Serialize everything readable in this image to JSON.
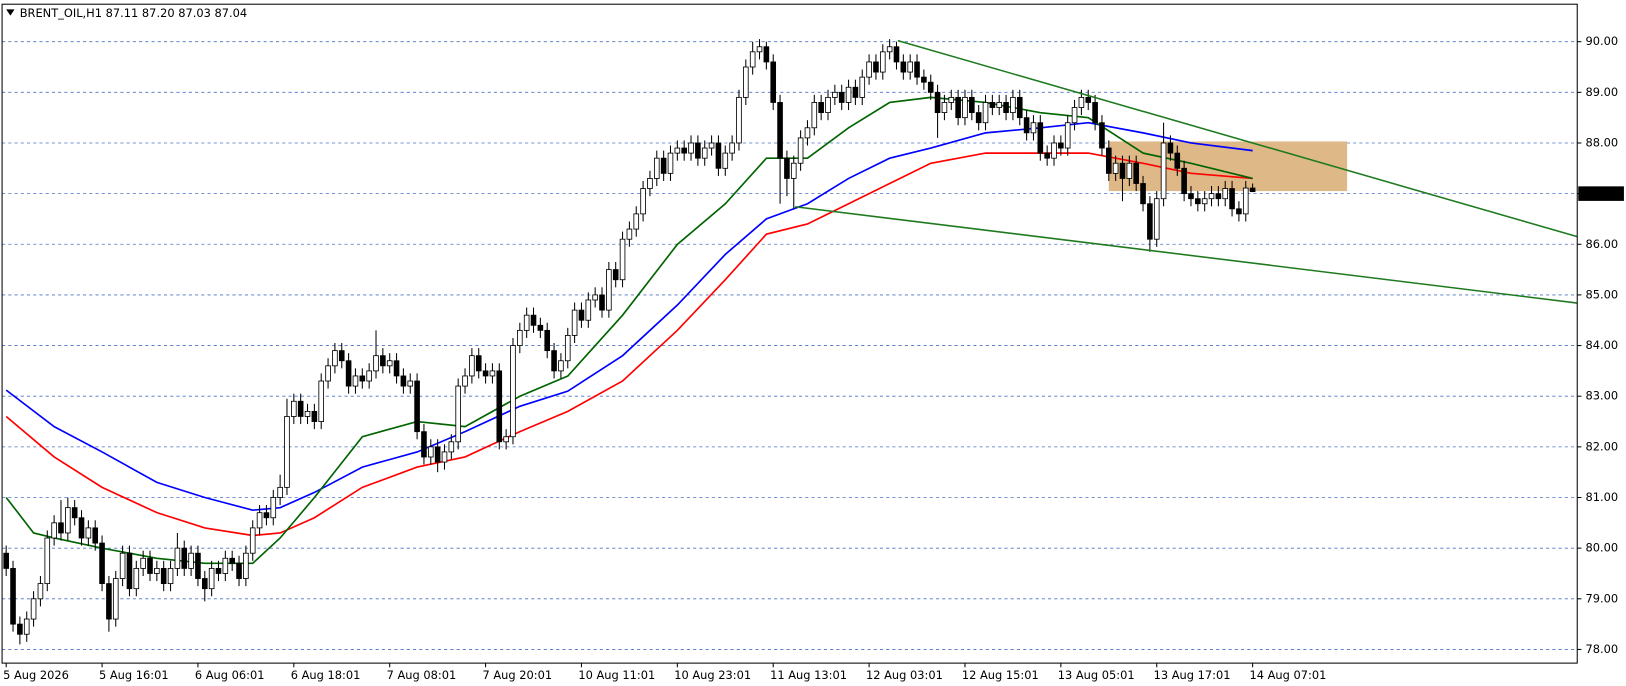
{
  "chart_data": {
    "type": "candlestick",
    "title": "BRENT_OIL,H1  87.11 87.20 87.03 87.04",
    "bull_color": "#ffffff",
    "bear_color": "#000000",
    "grid": true,
    "grid_color": "#4a72c4",
    "xlim": [
      -0.6,
      229.4
    ],
    "ylim": [
      77.73,
      90.74
    ],
    "yticks": [
      {
        "value": 78,
        "label": "78.00"
      },
      {
        "value": 79,
        "label": "79.00"
      },
      {
        "value": 80,
        "label": "80.00"
      },
      {
        "value": 81,
        "label": "81.00"
      },
      {
        "value": 82,
        "label": "82.00"
      },
      {
        "value": 83,
        "label": "83.00"
      },
      {
        "value": 84,
        "label": "84.00"
      },
      {
        "value": 85,
        "label": "85.00"
      },
      {
        "value": 86,
        "label": "86.00"
      },
      {
        "value": 87,
        "label": "87.00"
      },
      {
        "value": 88,
        "label": "88.00"
      },
      {
        "value": 89,
        "label": "89.00"
      },
      {
        "value": 90,
        "label": "90.00"
      }
    ],
    "highlighted_ytick": 87,
    "xticks": [
      {
        "value": 0,
        "label": "5 Aug 2026"
      },
      {
        "value": 14,
        "label": "5 Aug 16:01"
      },
      {
        "value": 28,
        "label": "6 Aug 06:01"
      },
      {
        "value": 42,
        "label": "6 Aug 18:01"
      },
      {
        "value": 56,
        "label": "7 Aug 08:01"
      },
      {
        "value": 70,
        "label": "7 Aug 20:01"
      },
      {
        "value": 84,
        "label": "10 Aug 11:01"
      },
      {
        "value": 98,
        "label": "10 Aug 23:01"
      },
      {
        "value": 112,
        "label": "11 Aug 13:01"
      },
      {
        "value": 126,
        "label": "12 Aug 03:01"
      },
      {
        "value": 140,
        "label": "12 Aug 15:01"
      },
      {
        "value": 154,
        "label": "13 Aug 05:01"
      },
      {
        "value": 168,
        "label": "13 Aug 17:01"
      },
      {
        "value": 182,
        "label": "14 Aug 07:01"
      }
    ],
    "candles": [
      [
        79.9,
        80.05,
        79.45,
        79.6
      ],
      [
        79.6,
        79.75,
        78.35,
        78.5
      ],
      [
        78.5,
        78.65,
        78.1,
        78.3
      ],
      [
        78.3,
        78.75,
        78.15,
        78.6
      ],
      [
        78.6,
        79.15,
        78.45,
        79.0
      ],
      [
        79.0,
        79.45,
        78.85,
        79.3
      ],
      [
        79.3,
        80.35,
        79.15,
        80.2
      ],
      [
        80.2,
        80.65,
        80.05,
        80.5
      ],
      [
        80.5,
        80.95,
        80.15,
        80.3
      ],
      [
        80.3,
        81.0,
        80.15,
        80.8
      ],
      [
        80.8,
        80.95,
        80.45,
        80.6
      ],
      [
        80.6,
        80.75,
        80.05,
        80.2
      ],
      [
        80.2,
        80.55,
        80.05,
        80.4
      ],
      [
        80.4,
        80.55,
        79.95,
        80.1
      ],
      [
        80.1,
        80.25,
        79.15,
        79.3
      ],
      [
        79.3,
        79.45,
        78.35,
        78.6
      ],
      [
        78.6,
        79.55,
        78.45,
        79.4
      ],
      [
        79.4,
        80.05,
        79.25,
        79.9
      ],
      [
        79.9,
        80.05,
        79.05,
        79.2
      ],
      [
        79.2,
        79.75,
        79.05,
        79.6
      ],
      [
        79.6,
        79.95,
        79.45,
        79.8
      ],
      [
        79.8,
        79.95,
        79.35,
        79.5
      ],
      [
        79.5,
        79.75,
        79.35,
        79.6
      ],
      [
        79.6,
        79.75,
        79.15,
        79.3
      ],
      [
        79.3,
        79.75,
        79.15,
        79.6
      ],
      [
        79.6,
        80.3,
        79.45,
        80.0
      ],
      [
        80.0,
        80.15,
        79.45,
        79.6
      ],
      [
        79.6,
        80.05,
        79.45,
        79.9
      ],
      [
        79.9,
        80.05,
        79.25,
        79.4
      ],
      [
        79.4,
        79.55,
        78.95,
        79.2
      ],
      [
        79.2,
        79.75,
        79.05,
        79.6
      ],
      [
        79.6,
        79.75,
        79.35,
        79.5
      ],
      [
        79.5,
        79.95,
        79.35,
        79.8
      ],
      [
        79.8,
        79.95,
        79.55,
        79.7
      ],
      [
        79.7,
        79.85,
        79.25,
        79.4
      ],
      [
        79.4,
        80.05,
        79.25,
        79.9
      ],
      [
        79.9,
        80.55,
        79.75,
        80.4
      ],
      [
        80.4,
        80.85,
        80.25,
        80.7
      ],
      [
        80.7,
        80.85,
        80.45,
        80.6
      ],
      [
        80.6,
        81.15,
        80.45,
        81.0
      ],
      [
        81.0,
        81.45,
        80.85,
        81.2
      ],
      [
        81.2,
        82.95,
        81.05,
        82.6
      ],
      [
        82.6,
        83.05,
        82.45,
        82.9
      ],
      [
        82.9,
        83.05,
        82.45,
        82.6
      ],
      [
        82.6,
        82.85,
        82.45,
        82.7
      ],
      [
        82.7,
        82.85,
        82.35,
        82.5
      ],
      [
        82.5,
        83.45,
        82.35,
        83.3
      ],
      [
        83.3,
        83.75,
        83.15,
        83.6
      ],
      [
        83.6,
        84.05,
        83.45,
        83.9
      ],
      [
        83.9,
        84.05,
        83.55,
        83.7
      ],
      [
        83.7,
        83.85,
        83.05,
        83.2
      ],
      [
        83.2,
        83.55,
        83.05,
        83.4
      ],
      [
        83.4,
        83.55,
        83.15,
        83.3
      ],
      [
        83.3,
        83.65,
        83.15,
        83.5
      ],
      [
        83.5,
        84.3,
        83.35,
        83.8
      ],
      [
        83.8,
        83.95,
        83.45,
        83.6
      ],
      [
        83.6,
        83.85,
        83.45,
        83.7
      ],
      [
        83.7,
        83.85,
        83.25,
        83.4
      ],
      [
        83.4,
        83.55,
        83.05,
        83.2
      ],
      [
        83.2,
        83.45,
        83.05,
        83.3
      ],
      [
        83.3,
        83.45,
        82.15,
        82.3
      ],
      [
        82.3,
        82.45,
        81.65,
        81.8
      ],
      [
        81.8,
        82.15,
        81.65,
        82.0
      ],
      [
        82.0,
        82.15,
        81.5,
        81.7
      ],
      [
        81.7,
        82.05,
        81.55,
        81.9
      ],
      [
        81.9,
        82.25,
        81.75,
        82.1
      ],
      [
        82.1,
        83.35,
        81.95,
        83.2
      ],
      [
        83.2,
        83.55,
        83.05,
        83.4
      ],
      [
        83.4,
        83.95,
        83.25,
        83.8
      ],
      [
        83.8,
        83.95,
        83.35,
        83.5
      ],
      [
        83.5,
        83.65,
        83.25,
        83.4
      ],
      [
        83.4,
        83.65,
        83.25,
        83.5
      ],
      [
        83.5,
        83.65,
        81.95,
        82.1
      ],
      [
        82.1,
        82.35,
        81.95,
        82.2
      ],
      [
        82.2,
        84.15,
        82.05,
        84.0
      ],
      [
        84.0,
        84.45,
        83.85,
        84.3
      ],
      [
        84.3,
        84.75,
        84.15,
        84.6
      ],
      [
        84.6,
        84.75,
        84.25,
        84.4
      ],
      [
        84.4,
        84.55,
        84.15,
        84.3
      ],
      [
        84.3,
        84.45,
        83.75,
        83.9
      ],
      [
        83.9,
        84.05,
        83.35,
        83.5
      ],
      [
        83.5,
        83.85,
        83.35,
        83.7
      ],
      [
        83.7,
        84.35,
        83.55,
        84.2
      ],
      [
        84.2,
        84.85,
        84.05,
        84.7
      ],
      [
        84.7,
        84.85,
        84.35,
        84.5
      ],
      [
        84.5,
        85.05,
        84.35,
        84.9
      ],
      [
        84.9,
        85.15,
        84.75,
        85.0
      ],
      [
        85.0,
        85.15,
        84.55,
        84.7
      ],
      [
        84.7,
        85.65,
        84.55,
        85.5
      ],
      [
        85.5,
        85.65,
        85.15,
        85.3
      ],
      [
        85.3,
        86.25,
        85.15,
        86.1
      ],
      [
        86.1,
        86.45,
        85.95,
        86.3
      ],
      [
        86.3,
        86.75,
        86.15,
        86.6
      ],
      [
        86.6,
        87.25,
        86.45,
        87.1
      ],
      [
        87.1,
        87.45,
        86.95,
        87.3
      ],
      [
        87.3,
        87.85,
        87.15,
        87.7
      ],
      [
        87.7,
        87.85,
        87.25,
        87.4
      ],
      [
        87.4,
        87.95,
        87.25,
        87.8
      ],
      [
        87.8,
        88.05,
        87.65,
        87.9
      ],
      [
        87.9,
        88.05,
        87.65,
        87.8
      ],
      [
        87.8,
        88.15,
        87.65,
        88.0
      ],
      [
        88.0,
        88.15,
        87.55,
        87.7
      ],
      [
        87.7,
        88.05,
        87.55,
        87.9
      ],
      [
        87.9,
        88.15,
        87.75,
        88.0
      ],
      [
        88.0,
        88.15,
        87.35,
        87.5
      ],
      [
        87.5,
        87.95,
        87.35,
        87.8
      ],
      [
        87.8,
        88.15,
        87.65,
        88.0
      ],
      [
        88.0,
        89.05,
        87.85,
        88.9
      ],
      [
        88.9,
        89.65,
        88.75,
        89.5
      ],
      [
        89.5,
        90.0,
        89.35,
        89.8
      ],
      [
        89.8,
        90.05,
        89.65,
        89.9
      ],
      [
        89.9,
        90.0,
        89.45,
        89.6
      ],
      [
        89.6,
        89.75,
        88.65,
        88.8
      ],
      [
        88.8,
        88.95,
        86.8,
        87.7
      ],
      [
        87.7,
        87.85,
        86.95,
        87.3
      ],
      [
        87.3,
        87.75,
        86.7,
        87.6
      ],
      [
        87.6,
        88.25,
        87.45,
        88.1
      ],
      [
        88.1,
        88.45,
        87.95,
        88.3
      ],
      [
        88.3,
        88.95,
        88.15,
        88.8
      ],
      [
        88.8,
        88.95,
        88.45,
        88.6
      ],
      [
        88.6,
        89.05,
        88.45,
        88.9
      ],
      [
        88.9,
        89.15,
        88.75,
        89.0
      ],
      [
        89.0,
        89.15,
        88.65,
        88.8
      ],
      [
        88.8,
        89.25,
        88.65,
        89.1
      ],
      [
        89.1,
        89.25,
        88.75,
        88.9
      ],
      [
        88.9,
        89.45,
        88.75,
        89.3
      ],
      [
        89.3,
        89.75,
        89.15,
        89.6
      ],
      [
        89.6,
        89.75,
        89.25,
        89.4
      ],
      [
        89.4,
        89.95,
        89.25,
        89.8
      ],
      [
        89.8,
        90.05,
        89.65,
        89.9
      ],
      [
        89.9,
        90.0,
        89.45,
        89.6
      ],
      [
        89.6,
        89.75,
        89.25,
        89.4
      ],
      [
        89.4,
        89.75,
        89.25,
        89.6
      ],
      [
        89.6,
        89.75,
        89.15,
        89.3
      ],
      [
        89.3,
        89.45,
        89.05,
        89.2
      ],
      [
        89.2,
        89.35,
        88.85,
        89.0
      ],
      [
        89.0,
        89.15,
        88.1,
        88.6
      ],
      [
        88.6,
        88.95,
        88.45,
        88.8
      ],
      [
        88.8,
        89.05,
        88.65,
        88.9
      ],
      [
        88.9,
        89.05,
        88.35,
        88.5
      ],
      [
        88.5,
        89.05,
        88.35,
        88.9
      ],
      [
        88.9,
        89.05,
        88.45,
        88.6
      ],
      [
        88.6,
        88.75,
        88.25,
        88.4
      ],
      [
        88.4,
        88.95,
        88.25,
        88.8
      ],
      [
        88.8,
        88.95,
        88.55,
        88.7
      ],
      [
        88.7,
        88.95,
        88.55,
        88.8
      ],
      [
        88.8,
        88.95,
        88.45,
        88.6
      ],
      [
        88.6,
        89.05,
        88.45,
        88.9
      ],
      [
        88.9,
        89.05,
        88.35,
        88.5
      ],
      [
        88.5,
        88.65,
        88.05,
        88.2
      ],
      [
        88.2,
        88.55,
        88.05,
        88.4
      ],
      [
        88.4,
        88.55,
        87.65,
        87.8
      ],
      [
        87.8,
        87.95,
        87.55,
        87.7
      ],
      [
        87.7,
        88.15,
        87.55,
        88.0
      ],
      [
        88.0,
        88.15,
        87.75,
        87.9
      ],
      [
        87.9,
        88.55,
        87.75,
        88.4
      ],
      [
        88.4,
        88.85,
        88.25,
        88.7
      ],
      [
        88.7,
        89.05,
        88.55,
        88.9
      ],
      [
        88.9,
        89.05,
        88.65,
        88.8
      ],
      [
        88.8,
        88.95,
        88.25,
        88.4
      ],
      [
        88.4,
        88.55,
        87.75,
        87.9
      ],
      [
        87.9,
        88.05,
        87.25,
        87.4
      ],
      [
        87.4,
        87.75,
        87.25,
        87.6
      ],
      [
        87.6,
        87.75,
        86.85,
        87.3
      ],
      [
        87.3,
        87.75,
        87.15,
        87.6
      ],
      [
        87.6,
        87.75,
        87.05,
        87.2
      ],
      [
        87.2,
        87.35,
        86.65,
        86.8
      ],
      [
        86.8,
        86.95,
        85.85,
        86.1
      ],
      [
        86.1,
        87.05,
        85.95,
        86.9
      ],
      [
        86.9,
        88.4,
        86.75,
        88.0
      ],
      [
        88.0,
        88.15,
        87.65,
        87.8
      ],
      [
        87.8,
        87.95,
        87.35,
        87.5
      ],
      [
        87.5,
        87.65,
        86.85,
        87.0
      ],
      [
        87.0,
        87.15,
        86.75,
        86.9
      ],
      [
        86.9,
        87.05,
        86.65,
        86.8
      ],
      [
        86.8,
        87.05,
        86.65,
        86.9
      ],
      [
        86.9,
        87.15,
        86.75,
        87.0
      ],
      [
        87.0,
        87.15,
        86.75,
        86.9
      ],
      [
        86.9,
        87.25,
        86.75,
        87.1
      ],
      [
        87.1,
        87.25,
        86.55,
        86.7
      ],
      [
        86.7,
        86.85,
        86.45,
        86.6
      ],
      [
        86.6,
        87.25,
        86.45,
        87.11
      ],
      [
        87.11,
        87.2,
        87.03,
        87.04
      ]
    ],
    "moving_averages": [
      {
        "color": "#0000ff",
        "x": [
          0,
          7,
          14,
          22,
          29,
          36,
          40,
          45,
          52,
          60,
          67,
          75,
          82,
          90,
          98,
          105,
          111,
          117,
          123,
          129,
          135,
          143,
          151,
          158,
          166,
          173,
          182
        ],
        "values": [
          83.12,
          82.4,
          81.9,
          81.3,
          81.0,
          80.75,
          80.8,
          81.1,
          81.6,
          81.9,
          82.3,
          82.8,
          83.1,
          83.8,
          84.8,
          85.8,
          86.5,
          86.8,
          87.3,
          87.7,
          87.9,
          88.2,
          88.3,
          88.4,
          88.2,
          88.0,
          87.85
        ]
      },
      {
        "color": "#ff0000",
        "x": [
          0,
          7,
          14,
          22,
          29,
          36,
          40,
          45,
          52,
          60,
          67,
          75,
          82,
          90,
          98,
          105,
          111,
          117,
          123,
          129,
          135,
          143,
          151,
          158,
          166,
          173,
          182
        ],
        "values": [
          82.6,
          81.8,
          81.2,
          80.7,
          80.4,
          80.25,
          80.3,
          80.6,
          81.2,
          81.6,
          81.8,
          82.3,
          82.7,
          83.3,
          84.3,
          85.3,
          86.2,
          86.4,
          86.8,
          87.2,
          87.6,
          87.8,
          87.8,
          87.8,
          87.6,
          87.4,
          87.3
        ]
      },
      {
        "color": "#006400",
        "x": [
          0,
          4,
          7,
          14,
          22,
          29,
          36,
          40,
          45,
          52,
          60,
          67,
          75,
          82,
          90,
          98,
          105,
          111,
          117,
          123,
          129,
          135,
          143,
          151,
          158,
          166,
          173,
          182
        ],
        "values": [
          81.0,
          80.3,
          80.2,
          80.0,
          79.8,
          79.7,
          79.7,
          80.2,
          81.0,
          82.2,
          82.5,
          82.4,
          83.0,
          83.4,
          84.6,
          86.0,
          86.8,
          87.7,
          87.7,
          88.3,
          88.8,
          88.9,
          88.8,
          88.6,
          88.5,
          87.8,
          87.6,
          87.3
        ]
      }
    ],
    "trendlines": [
      {
        "color": "#1f7a1f",
        "x": [
          130.2,
          229.4
        ],
        "values": [
          90.02,
          86.15
        ]
      },
      {
        "color": "#1f7a1f",
        "x": [
          115.2,
          229.4
        ],
        "values": [
          86.74,
          84.84
        ]
      }
    ],
    "zones": [
      {
        "color": "#deb887",
        "x": [
          161,
          195.8
        ],
        "values": [
          88.03,
          87.05
        ]
      }
    ]
  }
}
